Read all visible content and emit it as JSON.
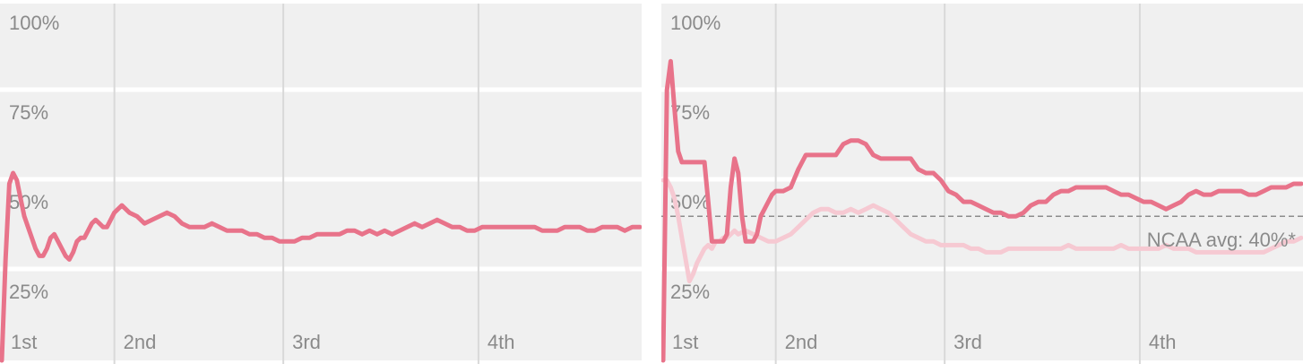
{
  "colors": {
    "background": "#f0f0f0",
    "band_gap": "#ffffff",
    "grid": "#d9d9d9",
    "tick_text": "#8a8a8a",
    "primary_line": "#e8738a",
    "secondary_line": "#f6c9d2",
    "reference_line": "#8c8c8c"
  },
  "chart_data": [
    {
      "type": "line",
      "y_ticks": [
        "100%",
        "75%",
        "50%",
        "25%"
      ],
      "x_ticks": [
        "1st",
        "2nd",
        "3rd",
        "4th"
      ],
      "ylim": [
        0,
        100
      ],
      "xlim": [
        0,
        170
      ],
      "x_tick_positions": [
        0,
        30,
        75,
        127
      ],
      "grid": true,
      "series": [
        {
          "style": "primary",
          "x": [
            0,
            1,
            2,
            3,
            4,
            5,
            6,
            7,
            8,
            9,
            10,
            11,
            12,
            13,
            14,
            15,
            16,
            17,
            18,
            19,
            20,
            21,
            22,
            23,
            24,
            25,
            26,
            27,
            28,
            29,
            30,
            32,
            34,
            36,
            38,
            40,
            42,
            44,
            46,
            48,
            50,
            52,
            54,
            56,
            58,
            60,
            62,
            64,
            66,
            68,
            70,
            72,
            74,
            76,
            78,
            80,
            82,
            84,
            86,
            88,
            90,
            92,
            94,
            96,
            98,
            100,
            102,
            104,
            106,
            108,
            110,
            112,
            114,
            116,
            118,
            120,
            122,
            124,
            126,
            128,
            130,
            132,
            134,
            136,
            138,
            140,
            142,
            144,
            146,
            148,
            150,
            152,
            154,
            156,
            158,
            160,
            162,
            164,
            166,
            168,
            170
          ],
          "values": [
            0,
            28,
            49,
            52,
            50,
            45,
            40,
            37,
            34,
            31,
            29,
            29,
            31,
            34,
            35,
            33,
            31,
            29,
            28,
            30,
            33,
            34,
            34,
            36,
            38,
            39,
            38,
            37,
            37,
            39,
            41,
            43,
            41,
            40,
            38,
            39,
            40,
            41,
            40,
            38,
            37,
            37,
            37,
            38,
            37,
            36,
            36,
            36,
            35,
            35,
            34,
            34,
            33,
            33,
            33,
            34,
            34,
            35,
            35,
            35,
            35,
            36,
            36,
            35,
            36,
            35,
            36,
            35,
            36,
            37,
            38,
            37,
            38,
            39,
            38,
            37,
            37,
            36,
            36,
            37,
            37,
            37,
            37,
            37,
            37,
            37,
            37,
            36,
            36,
            36,
            37,
            37,
            37,
            36,
            36,
            37,
            37,
            37,
            36,
            37,
            37
          ]
        }
      ]
    },
    {
      "type": "line",
      "y_ticks": [
        "100%",
        "75%",
        "50%",
        "25%"
      ],
      "x_ticks": [
        "1st",
        "2nd",
        "3rd",
        "4th"
      ],
      "ylim": [
        0,
        100
      ],
      "xlim": [
        0,
        170
      ],
      "x_tick_positions": [
        0,
        30,
        75,
        127
      ],
      "grid": true,
      "reference_line": {
        "value": 40,
        "label": "NCAA avg: 40%*"
      },
      "series": [
        {
          "style": "secondary",
          "x": [
            0,
            1,
            2,
            3,
            4,
            5,
            6,
            7,
            8,
            9,
            10,
            11,
            12,
            13,
            14,
            15,
            16,
            17,
            18,
            19,
            20,
            22,
            24,
            26,
            28,
            30,
            32,
            34,
            36,
            38,
            40,
            42,
            44,
            46,
            48,
            50,
            52,
            54,
            56,
            58,
            60,
            62,
            64,
            66,
            68,
            70,
            72,
            74,
            76,
            78,
            80,
            82,
            84,
            86,
            88,
            90,
            92,
            94,
            96,
            98,
            100,
            102,
            104,
            106,
            108,
            110,
            112,
            114,
            116,
            118,
            120,
            122,
            124,
            126,
            128,
            130,
            132,
            134,
            136,
            138,
            140,
            142,
            144,
            146,
            148,
            150,
            152,
            154,
            156,
            158,
            160,
            162,
            164,
            166,
            168,
            170
          ],
          "values": [
            50,
            50,
            48,
            45,
            40,
            34,
            28,
            22,
            24,
            27,
            29,
            31,
            32,
            31,
            33,
            33,
            34,
            34,
            35,
            36,
            35,
            36,
            35,
            34,
            33,
            33,
            34,
            35,
            37,
            39,
            41,
            42,
            42,
            41,
            41,
            42,
            41,
            42,
            43,
            42,
            41,
            39,
            37,
            35,
            34,
            33,
            33,
            32,
            32,
            32,
            32,
            31,
            31,
            30,
            30,
            30,
            31,
            31,
            31,
            31,
            31,
            31,
            31,
            31,
            32,
            31,
            31,
            31,
            31,
            31,
            31,
            32,
            31,
            31,
            31,
            31,
            31,
            32,
            31,
            31,
            31,
            30,
            30,
            30,
            30,
            30,
            30,
            30,
            30,
            30,
            30,
            31,
            32,
            33,
            33,
            34
          ]
        },
        {
          "style": "primary",
          "x": [
            0,
            1,
            2,
            3,
            4,
            5,
            6,
            7,
            8,
            9,
            10,
            11,
            12,
            13,
            14,
            15,
            16,
            17,
            18,
            19,
            20,
            21,
            22,
            23,
            24,
            25,
            26,
            27,
            28,
            29,
            30,
            32,
            34,
            36,
            38,
            40,
            42,
            44,
            46,
            48,
            50,
            52,
            54,
            56,
            58,
            60,
            62,
            64,
            66,
            68,
            70,
            72,
            74,
            76,
            78,
            80,
            82,
            84,
            86,
            88,
            90,
            92,
            94,
            96,
            98,
            100,
            102,
            104,
            106,
            108,
            110,
            112,
            114,
            116,
            118,
            120,
            122,
            124,
            126,
            128,
            130,
            132,
            134,
            136,
            138,
            140,
            142,
            144,
            146,
            148,
            150,
            152,
            154,
            156,
            158,
            160,
            162,
            164,
            166,
            168,
            170
          ],
          "values": [
            0,
            75,
            83,
            70,
            58,
            55,
            55,
            55,
            55,
            55,
            55,
            55,
            44,
            33,
            33,
            33,
            33,
            35,
            48,
            56,
            52,
            40,
            33,
            33,
            33,
            35,
            40,
            42,
            44,
            46,
            47,
            47,
            48,
            53,
            57,
            57,
            57,
            57,
            57,
            60,
            61,
            61,
            60,
            57,
            56,
            56,
            56,
            56,
            56,
            53,
            52,
            52,
            50,
            47,
            46,
            44,
            44,
            43,
            42,
            41,
            41,
            40,
            40,
            41,
            43,
            44,
            44,
            46,
            47,
            47,
            48,
            48,
            48,
            48,
            48,
            47,
            46,
            46,
            45,
            44,
            44,
            43,
            42,
            43,
            44,
            46,
            47,
            46,
            46,
            47,
            47,
            47,
            47,
            46,
            46,
            47,
            48,
            48,
            48,
            49,
            49
          ]
        }
      ]
    }
  ]
}
